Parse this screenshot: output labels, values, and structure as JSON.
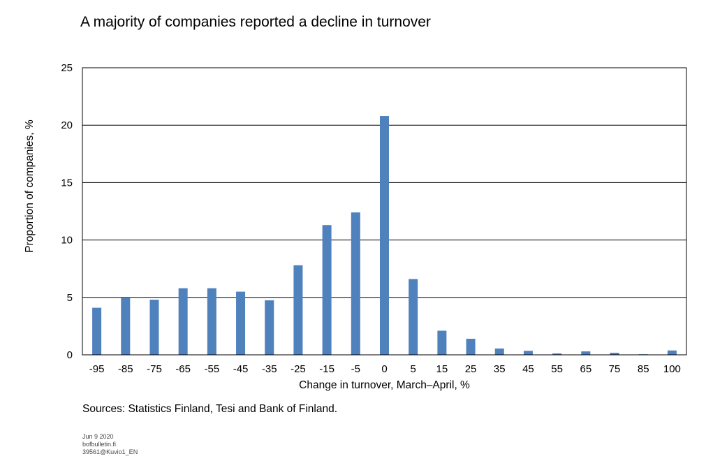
{
  "chart_data": {
    "type": "bar",
    "title": "A majority of companies reported a decline in turnover",
    "xlabel": "Change in turnover, March–April, %",
    "ylabel": "Proportion of companies, %",
    "categories": [
      "-95",
      "-85",
      "-75",
      "-65",
      "-55",
      "-45",
      "-35",
      "-25",
      "-15",
      "-5",
      "0",
      "5",
      "15",
      "25",
      "35",
      "45",
      "55",
      "65",
      "75",
      "85",
      "100"
    ],
    "values": [
      4.1,
      5.0,
      4.8,
      5.8,
      5.8,
      5.5,
      4.75,
      7.8,
      11.3,
      12.4,
      20.8,
      6.6,
      2.1,
      1.4,
      0.55,
      0.35,
      0.12,
      0.3,
      0.18,
      0.05,
      0.38
    ],
    "ylim": [
      0,
      25
    ],
    "yticks": [
      0,
      5,
      10,
      15,
      20,
      25
    ],
    "grid": true,
    "bar_color": "#4f81bd"
  },
  "footer": {
    "sources": "Sources: Statistics Finland, Tesi and Bank of Finland.",
    "date": "Jun 9 2020",
    "site": "bofbulletin.fi",
    "code": "39561@Kuvio1_EN"
  }
}
